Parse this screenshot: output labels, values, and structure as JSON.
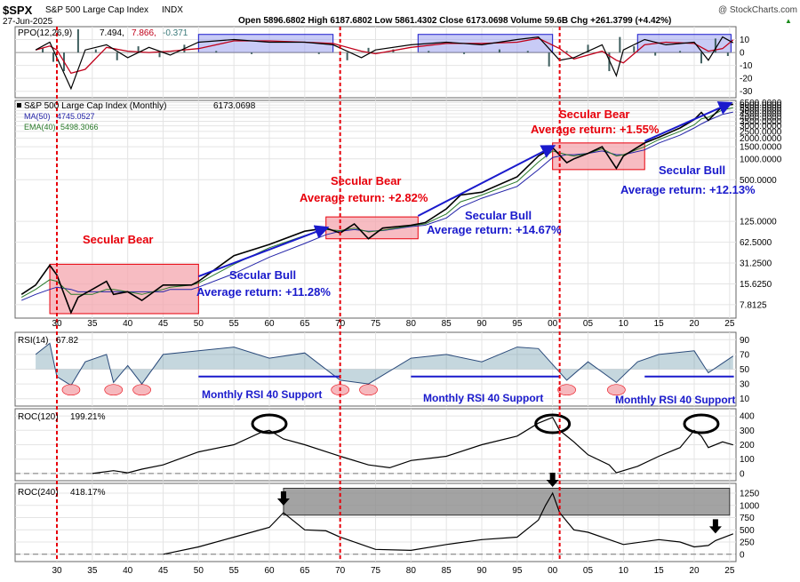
{
  "header": {
    "symbol": "$SPX",
    "name": "S&P 500 Large Cap Index",
    "exchange": "INDX",
    "date": "27-Jun-2025",
    "watermark": "@ StockCharts.com",
    "stats": "Open 5896.6802  High 6187.6802  Low 5861.4302  Close 6173.0698  Volume 59.6B  Chg +261.3799 (+4.42%)",
    "chg_arrow": "▲"
  },
  "colors": {
    "secular_bear_red": "#e8000b",
    "secular_bull_blue": "#1a1acc",
    "pink_box": "#f4a6ad",
    "blue_box": "#9aa0ee",
    "gray_box": "#8c8c8c",
    "price_black": "#000000",
    "ma50": "#2323a8",
    "ema40": "#2a7a2a",
    "ppo_line": "#000000",
    "ppo_signal": "#c0001a",
    "ppo_hist": "#3f5f5f",
    "rsi_fill": "#5a8ca0"
  },
  "chart_data": [
    {
      "type": "line",
      "panel": "ppo",
      "title": "PPO(12,26,9) 7.494, 7.866, -0.371",
      "title_parts": [
        "PPO(12,26,9)",
        "7.494,",
        "7.866,",
        "-0.371"
      ],
      "y_ticks": [
        10,
        0,
        -10,
        -20,
        -30
      ],
      "ylim": [
        -35,
        20
      ],
      "x": [
        1927,
        1929,
        1930,
        1932,
        1934,
        1937,
        1940,
        1943,
        1946,
        1950,
        1955,
        1960,
        1965,
        1969,
        1973,
        1975,
        1980,
        1985,
        1990,
        1995,
        1998,
        2001,
        2003,
        2007,
        2009,
        2010,
        2013,
        2016,
        2020,
        2022,
        2024,
        2025.5
      ],
      "values": [
        2,
        8,
        -4,
        -28,
        2,
        6,
        -4,
        4,
        -2,
        8,
        10,
        8,
        8,
        6,
        -4,
        2,
        6,
        8,
        6,
        10,
        12,
        -6,
        -4,
        6,
        -18,
        2,
        10,
        6,
        8,
        -6,
        12,
        7.5
      ],
      "shaded_periods": [
        [
          1950,
          1969
        ],
        [
          1981,
          2000
        ],
        [
          2012,
          2025.2
        ]
      ]
    },
    {
      "type": "line",
      "panel": "price",
      "legend": [
        "S&P 500 Large Cap Index (Monthly) 6173.0698",
        "MA(50) 4745.0527",
        "EMA(40) 5498.3066"
      ],
      "series_names": [
        "S&P 500 Large Cap Index (Monthly)",
        "MA(50)",
        "EMA(40)"
      ],
      "legend_values": [
        "6173.0698",
        "4745.0527",
        "5498.3066"
      ],
      "y_scale": "log",
      "y_ticks": [
        7.8125,
        15.625,
        31.25,
        62.5,
        125,
        500,
        1000,
        1500,
        2000,
        2500,
        3000,
        3500,
        4000,
        4500,
        5000,
        5500,
        6000,
        6500
      ],
      "y_tick_labels": [
        "7.8125",
        "15.6250",
        "31.2500",
        "62.5000",
        "125.0000",
        "500.0000",
        "1000.0000",
        "1500.0000",
        "2000.0000",
        "2500.0000",
        "3000.0000",
        "3500.0000",
        "4000.0000",
        "4500.0000",
        "5000.0000",
        "5500.0000",
        "6000.0000",
        "6500.0000"
      ],
      "ylim": [
        5,
        7000
      ],
      "x": [
        1925,
        1927,
        1929,
        1930,
        1932,
        1933,
        1935,
        1937,
        1938,
        1940,
        1942,
        1945,
        1946,
        1949,
        1950,
        1955,
        1960,
        1965,
        1968,
        1970,
        1972,
        1974,
        1976,
        1980,
        1982,
        1985,
        1987,
        1990,
        1995,
        1998,
        2000,
        2002,
        2003,
        2005,
        2007,
        2009,
        2010,
        2013,
        2015,
        2018,
        2020,
        2021,
        2022,
        2024,
        2025.5
      ],
      "values": [
        11,
        15,
        29,
        21,
        6,
        10,
        13,
        17,
        11,
        12,
        9,
        15,
        15,
        15,
        17,
        40,
        58,
        90,
        100,
        85,
        115,
        70,
        100,
        110,
        120,
        190,
        300,
        330,
        550,
        1100,
        1450,
        880,
        1000,
        1200,
        1500,
        730,
        1100,
        1700,
        2050,
        2800,
        3700,
        4700,
        3600,
        5800,
        6173
      ],
      "ma50": [
        9,
        11,
        13,
        14,
        13,
        12,
        12,
        12,
        12,
        12,
        12,
        12,
        13,
        13,
        14,
        22,
        38,
        60,
        80,
        90,
        95,
        90,
        92,
        105,
        110,
        140,
        200,
        270,
        400,
        700,
        1050,
        1150,
        1150,
        1200,
        1300,
        1150,
        1150,
        1350,
        1700,
        2200,
        2800,
        3200,
        3600,
        4400,
        4745
      ],
      "ema40": [
        10,
        13,
        18,
        17,
        11,
        11,
        11,
        13,
        13,
        12,
        11,
        13,
        14,
        15,
        16,
        30,
        52,
        78,
        95,
        92,
        100,
        88,
        93,
        108,
        115,
        160,
        240,
        300,
        470,
        900,
        1300,
        1150,
        1100,
        1200,
        1400,
        1100,
        1150,
        1500,
        1900,
        2500,
        3100,
        3800,
        4000,
        5100,
        5498
      ]
    },
    {
      "type": "line",
      "panel": "rsi",
      "title": "RSI(14) 67.82",
      "title_parts": [
        "RSI(14)",
        "67.82"
      ],
      "y_ticks": [
        90,
        70,
        50,
        30,
        10
      ],
      "ylim": [
        0,
        100
      ],
      "x": [
        1927,
        1929,
        1930,
        1932,
        1934,
        1937,
        1938,
        1940,
        1942,
        1945,
        1950,
        1955,
        1960,
        1965,
        1970,
        1974,
        1980,
        1985,
        1990,
        1995,
        1998,
        2002,
        2005,
        2009,
        2012,
        2015,
        2020,
        2022,
        2025.5
      ],
      "values": [
        70,
        85,
        40,
        28,
        60,
        70,
        32,
        55,
        30,
        70,
        75,
        80,
        65,
        72,
        35,
        30,
        65,
        70,
        60,
        80,
        78,
        35,
        60,
        32,
        60,
        70,
        75,
        45,
        67.8
      ],
      "support_level": 40,
      "oversold_touches": [
        1932,
        1938,
        1942,
        1970,
        1974,
        2002,
        2009
      ],
      "support_segments": [
        [
          1950,
          1970
        ],
        [
          1980,
          2001
        ],
        [
          2013,
          2025.6
        ]
      ]
    },
    {
      "type": "line",
      "panel": "roc120",
      "title": "ROC(120) 199.21%",
      "title_parts": [
        "ROC(120)",
        "199.21%"
      ],
      "y_ticks": [
        400,
        300,
        200,
        100,
        0
      ],
      "ylim": [
        -50,
        450
      ],
      "zero_line": true,
      "x": [
        1935,
        1938,
        1940,
        1942,
        1945,
        1950,
        1955,
        1959,
        1960,
        1962,
        1965,
        1970,
        1974,
        1977,
        1980,
        1985,
        1990,
        1995,
        1998,
        2000,
        2001,
        2003,
        2005,
        2008,
        2009,
        2012,
        2015,
        2018,
        2020,
        2021,
        2022,
        2024,
        2025.5
      ],
      "values": [
        0,
        20,
        5,
        30,
        60,
        150,
        200,
        290,
        300,
        240,
        200,
        120,
        60,
        40,
        90,
        120,
        200,
        260,
        350,
        390,
        300,
        220,
        130,
        60,
        5,
        50,
        120,
        180,
        300,
        260,
        180,
        220,
        199
      ],
      "highlight_peaks": [
        1960,
        2000,
        2021
      ]
    },
    {
      "type": "line",
      "panel": "roc240",
      "title": "ROC(240) 418.17%",
      "title_parts": [
        "ROC(240)",
        "418.17%"
      ],
      "y_ticks": [
        1250,
        1000,
        750,
        500,
        250,
        0
      ],
      "ylim": [
        -150,
        1450
      ],
      "zero_line": true,
      "x": [
        1945,
        1950,
        1955,
        1960,
        1962,
        1965,
        1968,
        1970,
        1975,
        1980,
        1985,
        1990,
        1995,
        1998,
        1999,
        2000,
        2001,
        2003,
        2005,
        2010,
        2015,
        2018,
        2020,
        2022,
        2023,
        2025.5
      ],
      "values": [
        0,
        150,
        350,
        550,
        850,
        500,
        480,
        350,
        100,
        80,
        200,
        300,
        350,
        700,
        1000,
        1250,
        850,
        500,
        450,
        200,
        300,
        250,
        150,
        180,
        280,
        418
      ],
      "gray_band": [
        [
          1962,
          2025
        ],
        [
          800,
          1350
        ]
      ],
      "arrow_markers": [
        1962,
        2000,
        2023
      ]
    }
  ],
  "x_axis": {
    "tick_years": [
      1930,
      1935,
      1940,
      1945,
      1950,
      1955,
      1960,
      1965,
      1970,
      1975,
      1980,
      1985,
      1990,
      1995,
      2000,
      2005,
      2010,
      2015,
      2020,
      2025
    ],
    "tick_labels": [
      "30",
      "35",
      "40",
      "45",
      "50",
      "55",
      "60",
      "65",
      "70",
      "75",
      "80",
      "85",
      "90",
      "95",
      "00",
      "05",
      "10",
      "15",
      "20",
      "25"
    ],
    "xlim": [
      1924.1,
      2025.9
    ],
    "vertical_markers": [
      1930,
      1970,
      2001
    ]
  },
  "annotations": {
    "bear1": {
      "title": "Secular Bear",
      "start": 1929,
      "end": 1950
    },
    "bull1": {
      "title": "Secular Bull",
      "return": "Average return:  +11.28%",
      "start": 1950,
      "end": 1968
    },
    "bear2": {
      "title": "Secular Bear",
      "return": "Average return:  +2.82%",
      "start": 1968,
      "end": 1981
    },
    "bull2": {
      "title": "Secular Bull",
      "return": "Average return:  +14.67%",
      "start": 1981,
      "end": 2000
    },
    "bear3": {
      "title": "Secular Bear",
      "return": "Average return:  +1.55%",
      "start": 2000,
      "end": 2013
    },
    "bull3": {
      "title": "Secular Bull",
      "return": "Average return:  +12.13%",
      "start": 2013,
      "end": 2025.3
    },
    "rsi_support": [
      "Monthly RSI 40 Support",
      "Monthly RSI 40 Support",
      "Monthly RSI 40 Support"
    ]
  }
}
